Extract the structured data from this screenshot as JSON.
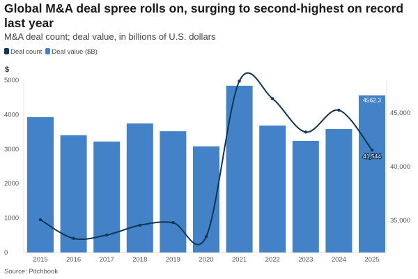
{
  "title": "Global M&A deal spree rolls on, surging to second-highest on record last year",
  "subtitle": "M&A deal count; deal value, in billions of U.S. dollars",
  "source": "Source: Pitchbook",
  "colors": {
    "deal_value": "#4382c6",
    "deal_count": "#0f3557"
  },
  "chart_data": {
    "type": "bar+line",
    "categories": [
      "2015",
      "2016",
      "2017",
      "2018",
      "2019",
      "2020",
      "2021",
      "2022",
      "2023",
      "2024",
      "2025"
    ],
    "series": [
      {
        "name": "Deal value ($B)",
        "type": "bar",
        "axis": "left",
        "values": [
          3930,
          3400,
          3220,
          3745,
          3520,
          3080,
          4840,
          3685,
          3240,
          3585,
          4562.3
        ]
      },
      {
        "name": "Deal count",
        "type": "line",
        "axis": "right",
        "values": [
          35050,
          33310,
          33630,
          34540,
          34780,
          33480,
          47970,
          46330,
          43220,
          45260,
          41544
        ]
      }
    ],
    "left_axis": {
      "label": "$",
      "ylim": [
        0,
        5000
      ],
      "ticks": [
        "0",
        "1000",
        "2000",
        "3000",
        "4000",
        "5000"
      ]
    },
    "right_axis": {
      "ylim": [
        32000,
        48050
      ],
      "ticks": [
        {
          "v": 35000,
          "label": "35,000"
        },
        {
          "v": 40000,
          "label": "40,000"
        },
        {
          "v": 45000,
          "label": "45,000"
        }
      ]
    },
    "data_labels": {
      "bar_last": "4562.3",
      "line_last": "41,544"
    },
    "legend": {
      "placement": "top-left",
      "items": [
        "Deal count",
        "Deal value ($B)"
      ]
    },
    "grid": false
  }
}
